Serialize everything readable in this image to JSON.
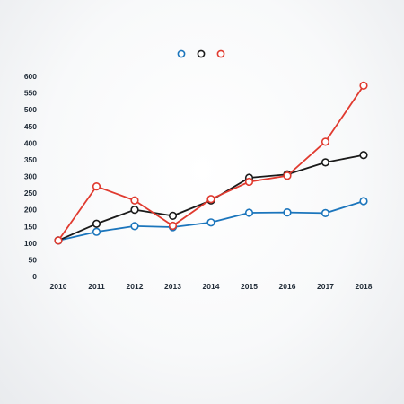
{
  "chart_data": {
    "type": "line",
    "title": "",
    "xlabel": "",
    "ylabel": "",
    "x": [
      "2010",
      "2011",
      "2012",
      "2013",
      "2014",
      "2015",
      "2016",
      "2017",
      "2018"
    ],
    "yticks": [
      "0",
      "50",
      "100",
      "150",
      "200",
      "250",
      "300",
      "350",
      "400",
      "450",
      "500",
      "550",
      "600"
    ],
    "ylim": [
      0,
      600
    ],
    "grid": false,
    "legend": "top-center",
    "series": [
      {
        "color": "#1b75bc",
        "values": [
          108,
          134,
          151,
          148,
          162,
          191,
          192,
          190,
          226
        ]
      },
      {
        "color": "#1a1a1a",
        "values": [
          108,
          158,
          200,
          182,
          228,
          296,
          306,
          342,
          364
        ]
      },
      {
        "color": "#e03a2f",
        "values": [
          108,
          270,
          228,
          152,
          232,
          284,
          302,
          404,
          572
        ]
      }
    ]
  }
}
